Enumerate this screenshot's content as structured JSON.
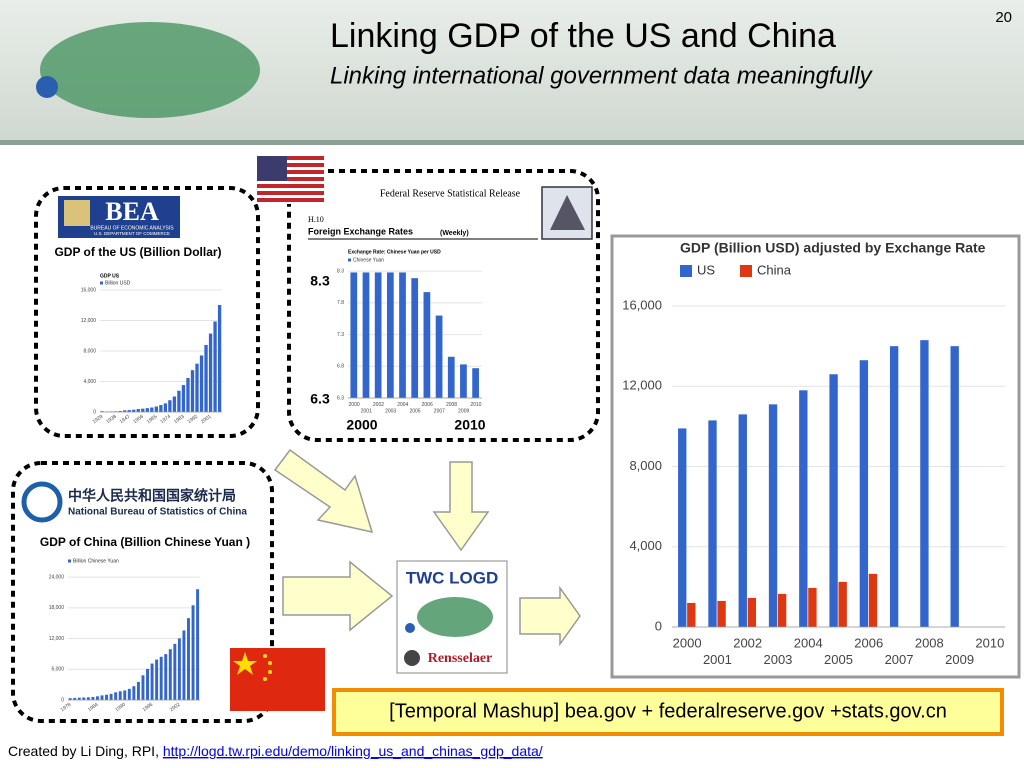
{
  "slide": {
    "title": "Linking GDP of the US and China",
    "subtitle": "Linking international government data meaningfully",
    "page_number": 20,
    "us_panel_label": "GDP of the US (Billion Dollar)",
    "china_panel_label": "GDP of China (Billion Chinese Yuan )",
    "caption": "[Temporal Mashup] bea.gov + federalreserve.gov +stats.gov.cn",
    "footer_prefix": "Created by Li Ding, RPI, ",
    "footer_link": "http://logd.tw.rpi.edu/demo/linking_us_and_chinas_gdp_data/"
  },
  "bea_logo": {
    "name": "BEA",
    "line1": "BUREAU OF ECONOMIC ANALYSIS",
    "line2": "U.S. DEPARTMENT OF COMMERCE"
  },
  "nbs_logo": {
    "chinese": "中华人民共和国国家统计局",
    "english": "National Bureau of Statistics of China"
  },
  "logd_logo": {
    "name": "TWC LOGD",
    "university": "Rensselaer"
  },
  "fed_release": {
    "heading": "Federal Reserve Statistical Release",
    "code": "H.10",
    "title": "Foreign Exchange Rates",
    "frequency": "(Weekly)"
  },
  "chart_data": [
    {
      "type": "bar",
      "title": "GDP (Billion USD) adjusted by Exchange Rate",
      "categories": [
        "2000",
        "2001",
        "2002",
        "2003",
        "2004",
        "2005",
        "2006",
        "2007",
        "2008",
        "2009",
        "2010"
      ],
      "series": [
        {
          "name": "US",
          "color": "#3366cc",
          "values": [
            9900,
            10300,
            10600,
            11100,
            11800,
            12600,
            13300,
            14000,
            14300,
            14000,
            null
          ]
        },
        {
          "name": "China",
          "color": "#dc3912",
          "values": [
            1200,
            1300,
            1450,
            1650,
            1950,
            2250,
            2650,
            null,
            null,
            null,
            null
          ]
        }
      ],
      "ylim": [
        0,
        17000
      ],
      "yticks": [
        0,
        {
          "value": 4000,
          "label": "4,000"
        },
        {
          "value": 8000,
          "label": "8,000"
        },
        {
          "value": 12000,
          "label": "12,000"
        },
        {
          "value": 16000,
          "label": "16,000"
        }
      ],
      "grid": true,
      "legend": "top-left"
    },
    {
      "type": "bar",
      "title": "Exchange Rate: Chinese Yuan per USD",
      "categories": [
        "2000",
        "2001",
        "2002",
        "2003",
        "2004",
        "2005",
        "2006",
        "2007",
        "2008",
        "2009",
        "2010"
      ],
      "series": [
        {
          "name": "Chinese Yuan",
          "color": "#3366cc",
          "values": [
            8.28,
            8.28,
            8.28,
            8.28,
            8.28,
            8.19,
            7.97,
            7.6,
            6.95,
            6.83,
            6.77
          ]
        }
      ],
      "ylim": [
        6.3,
        8.35
      ],
      "yticks": [
        6.3,
        6.8,
        7.3,
        7.8,
        8.3
      ],
      "grid": true,
      "legend": "top-left",
      "annotations": [
        "8.3",
        "6.3",
        "2000",
        "2010"
      ]
    },
    {
      "type": "bar",
      "title": "GDP US",
      "categories": [
        "1929",
        null,
        null,
        "1938",
        null,
        null,
        "1947",
        null,
        null,
        "1956",
        null,
        null,
        "1965",
        null,
        null,
        "1974",
        null,
        null,
        "1983",
        null,
        null,
        "1992",
        null,
        null,
        "2001",
        null,
        null
      ],
      "series": [
        {
          "name": "Billion USD",
          "color": "#3366cc",
          "values": [
            104,
            59,
            74,
            87,
            129,
            220,
            250,
            300,
            389,
            437,
            507,
            586,
            719,
            910,
            1128,
            1546,
            2030,
            2789,
            3535,
            4463,
            5482,
            6342,
            7415,
            8794,
            10286,
            11868,
            14029
          ]
        }
      ],
      "ylim": [
        0,
        16000
      ],
      "yticks": [
        0,
        {
          "value": 4000,
          "label": "4,000"
        },
        {
          "value": 8000,
          "label": "8,000"
        },
        {
          "value": 12000,
          "label": "12,000"
        },
        {
          "value": 16000,
          "label": "16,000"
        }
      ],
      "grid": true,
      "legend": "top-left"
    },
    {
      "type": "bar",
      "categories": [
        "1978",
        null,
        null,
        null,
        null,
        null,
        "1984",
        null,
        null,
        null,
        null,
        null,
        "1990",
        null,
        null,
        null,
        null,
        null,
        "1996",
        null,
        null,
        null,
        null,
        null,
        "2002",
        null,
        null,
        null,
        null
      ],
      "series": [
        {
          "name": "Billion Chinese Yuan",
          "color": "#3366cc",
          "values": [
            365,
            406,
            455,
            489,
            532,
            596,
            721,
            902,
            1028,
            1206,
            1504,
            1700,
            1867,
            2178,
            2692,
            3533,
            4820,
            6079,
            7118,
            7897,
            8440,
            8968,
            9921,
            10966,
            12033,
            13582,
            15988,
            18494,
            21631
          ]
        }
      ],
      "ylim": [
        0,
        25000
      ],
      "yticks": [
        0,
        {
          "value": 6000,
          "label": "6,000"
        },
        {
          "value": 12000,
          "label": "12,000"
        },
        {
          "value": 18000,
          "label": "18,000"
        },
        {
          "value": 24000,
          "label": "24,000"
        }
      ],
      "grid": true,
      "legend": "top-left"
    }
  ]
}
